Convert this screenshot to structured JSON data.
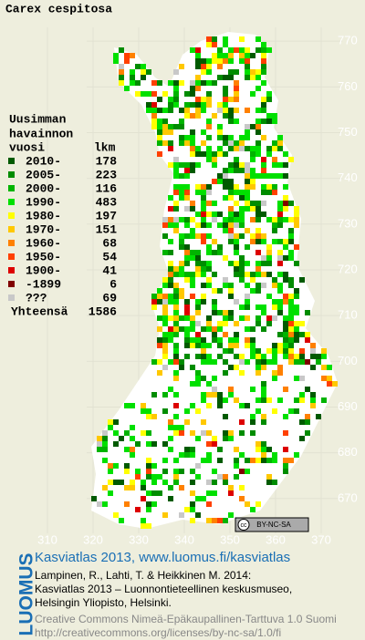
{
  "title": "Carex cespitosa",
  "legend": {
    "heading": [
      "Uusimman",
      "havainnon"
    ],
    "col_year": "vuosi",
    "col_count": "lkm",
    "entries": [
      {
        "label": "2010-",
        "count": 178,
        "color": "#005a00"
      },
      {
        "label": "2005-",
        "count": 223,
        "color": "#008c00"
      },
      {
        "label": "2000-",
        "count": 116,
        "color": "#00b400"
      },
      {
        "label": "1990-",
        "count": 483,
        "color": "#00e000"
      },
      {
        "label": "1980-",
        "count": 197,
        "color": "#ffff00"
      },
      {
        "label": "1970-",
        "count": 151,
        "color": "#ffc800"
      },
      {
        "label": "1960-",
        "count": 68,
        "color": "#ff8000"
      },
      {
        "label": "1950-",
        "count": 54,
        "color": "#ff4000"
      },
      {
        "label": "1900-",
        "count": 41,
        "color": "#dd0000"
      },
      {
        "label": "-1899",
        "count": 6,
        "color": "#800000"
      },
      {
        "label": "???",
        "count": 69,
        "color": "#c8c8c8"
      }
    ],
    "total_label": "Yhteensä",
    "total": 1586
  },
  "axes": {
    "x_ticks": [
      310,
      320,
      330,
      340,
      350,
      360,
      370
    ],
    "xlim": [
      300,
      380
    ],
    "y_ticks": [
      770,
      760,
      750,
      740,
      730,
      720,
      710,
      700,
      690,
      680,
      670
    ],
    "ylim": [
      661,
      779
    ]
  },
  "badge": {
    "icon": "cc",
    "text": "BY-NC-SA"
  },
  "footer": {
    "logo": "LUOMUS",
    "link": "Kasviatlas 2013, www.luomus.fi/kasviatlas",
    "citation": [
      "Lampinen, R., Lahti, T. & Heikkinen M. 2014:",
      "Kasviatlas 2013 – Luonnontieteellinen keskusmuseo,",
      "Helsingin Yliopisto, Helsinki."
    ],
    "license": [
      "Creative Commons Nimeä-Epäkaupallinen-Tarttuva 1.0 Suomi",
      "http://creativecommons.org/licenses/by-nc-sa/1.0/fi"
    ]
  }
}
